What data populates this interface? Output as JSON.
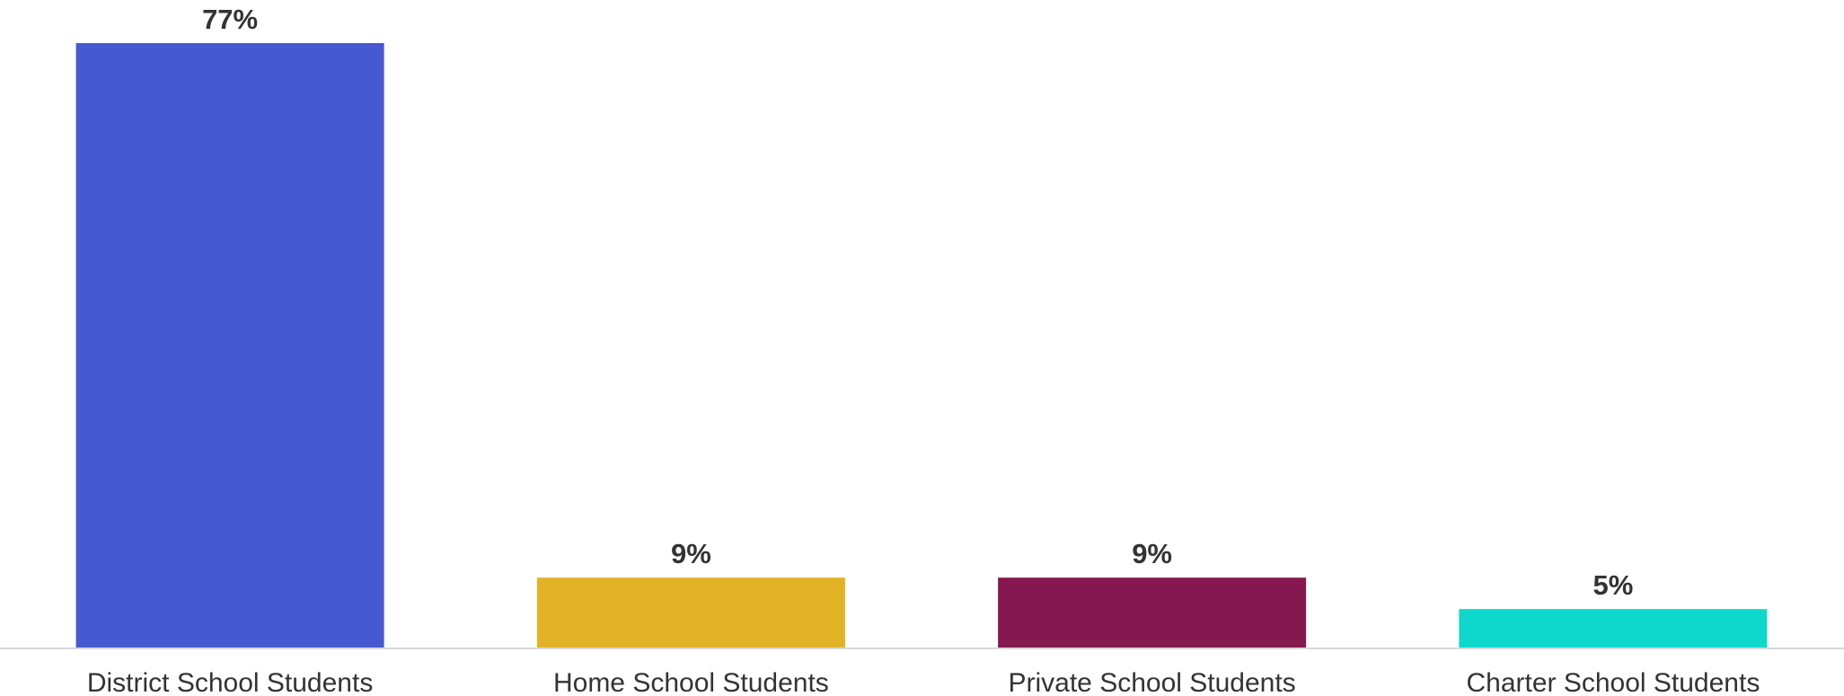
{
  "chart_data": {
    "type": "bar",
    "categories": [
      "District School Students",
      "Home School Students",
      "Private School Students",
      "Charter School Students"
    ],
    "values": [
      77,
      9,
      9,
      5
    ],
    "value_labels": [
      "77%",
      "9%",
      "9%",
      "5%"
    ],
    "colors": [
      "#4759d0",
      "#e2b226",
      "#85184f",
      "#0ed8cb"
    ],
    "title": "",
    "xlabel": "",
    "ylabel": "",
    "ylim": [
      0,
      77
    ],
    "grid": false,
    "legend": "none"
  }
}
